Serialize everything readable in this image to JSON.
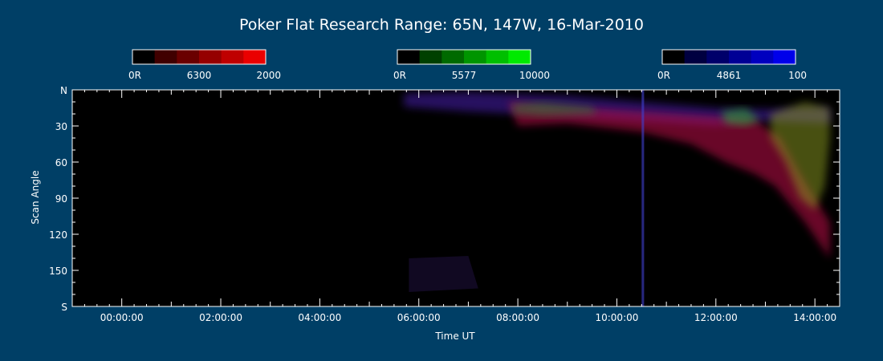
{
  "colors": {
    "background": "#003f66",
    "plot_background": "#000000",
    "axis": "#ffffff",
    "red_channel": "#ff0000",
    "green_channel": "#00ff00",
    "blue_channel": "#0000ff"
  },
  "colorbars": [
    {
      "name": "red-6300",
      "color": "#ff0000",
      "min_label": "0R",
      "line_label": "6300",
      "max_label": "2000"
    },
    {
      "name": "green-5577",
      "color": "#00ff00",
      "min_label": "0R",
      "line_label": "5577",
      "max_label": "10000"
    },
    {
      "name": "blue-4861",
      "color": "#0000ff",
      "min_label": "0R",
      "line_label": "4861",
      "max_label": "100"
    }
  ],
  "chart_data": {
    "type": "heatmap",
    "title": "Poker Flat Research Range: 65N, 147W, 16-Mar-2010",
    "xlabel": "Time UT",
    "ylabel": "Scan Angle",
    "x_unit": "hours UT",
    "xlim": [
      -1.0,
      14.5
    ],
    "ylim": [
      0,
      180
    ],
    "x_ticks": [
      {
        "value": 0,
        "label": "00:00:00"
      },
      {
        "value": 2,
        "label": "02:00:00"
      },
      {
        "value": 4,
        "label": "04:00:00"
      },
      {
        "value": 6,
        "label": "06:00:00"
      },
      {
        "value": 8,
        "label": "08:00:00"
      },
      {
        "value": 10,
        "label": "10:00:00"
      },
      {
        "value": 12,
        "label": "12:00:00"
      },
      {
        "value": 14,
        "label": "14:00:00"
      }
    ],
    "y_ticks": [
      {
        "value": 0,
        "label": "N"
      },
      {
        "value": 30,
        "label": "30"
      },
      {
        "value": 60,
        "label": "60"
      },
      {
        "value": 90,
        "label": "90"
      },
      {
        "value": 120,
        "label": "120"
      },
      {
        "value": 150,
        "label": "150"
      },
      {
        "value": 180,
        "label": "S"
      }
    ],
    "data_start_time": 5.6,
    "data_end_time": 14.5,
    "grid": false,
    "auroral_regions": [
      {
        "channel": "blue",
        "color": "#5020c0",
        "opacity": 0.5,
        "polygon": [
          [
            5.7,
            3
          ],
          [
            7,
            2
          ],
          [
            9,
            5
          ],
          [
            10.5,
            10
          ],
          [
            12,
            15
          ],
          [
            13,
            16
          ],
          [
            14.3,
            15
          ],
          [
            14.3,
            28
          ],
          [
            13,
            26
          ],
          [
            12,
            30
          ],
          [
            10.5,
            26
          ],
          [
            9,
            22
          ],
          [
            7,
            18
          ],
          [
            5.7,
            14
          ]
        ]
      },
      {
        "channel": "red",
        "color": "#c0104a",
        "opacity": 0.55,
        "polygon": [
          [
            7.8,
            10
          ],
          [
            9,
            14
          ],
          [
            10.5,
            18
          ],
          [
            12,
            22
          ],
          [
            12.8,
            25
          ],
          [
            13.3,
            40
          ],
          [
            13.7,
            70
          ],
          [
            14.3,
            110
          ],
          [
            14.3,
            140
          ],
          [
            13.8,
            110
          ],
          [
            13.2,
            80
          ],
          [
            12.8,
            70
          ],
          [
            12.2,
            60
          ],
          [
            11.5,
            45
          ],
          [
            10.5,
            35
          ],
          [
            9,
            28
          ],
          [
            8,
            30
          ]
        ]
      },
      {
        "channel": "green",
        "color": "#209020",
        "opacity": 0.45,
        "polygon": [
          [
            7.9,
            12
          ],
          [
            8.5,
            10
          ],
          [
            9.5,
            14
          ],
          [
            9.6,
            20
          ],
          [
            8.5,
            22
          ],
          [
            7.9,
            20
          ]
        ]
      },
      {
        "channel": "green",
        "color": "#30b030",
        "opacity": 0.55,
        "polygon": [
          [
            12.1,
            18
          ],
          [
            12.6,
            15
          ],
          [
            12.9,
            25
          ],
          [
            12.6,
            30
          ],
          [
            12.2,
            28
          ]
        ]
      },
      {
        "channel": "green",
        "color": "#90a020",
        "opacity": 0.5,
        "polygon": [
          [
            13.1,
            20
          ],
          [
            13.8,
            10
          ],
          [
            14.3,
            15
          ],
          [
            14.3,
            40
          ],
          [
            14.2,
            80
          ],
          [
            14.0,
            100
          ],
          [
            13.7,
            90
          ],
          [
            13.4,
            60
          ],
          [
            13.1,
            40
          ]
        ]
      },
      {
        "channel": "blue",
        "color": "#4040d0",
        "opacity": 0.6,
        "polygon": [
          [
            10.5,
            0
          ],
          [
            10.55,
            0
          ],
          [
            10.55,
            180
          ],
          [
            10.5,
            180
          ]
        ]
      },
      {
        "channel": "blue",
        "color": "#301a60",
        "opacity": 0.35,
        "polygon": [
          [
            5.8,
            140
          ],
          [
            7,
            138
          ],
          [
            7.2,
            165
          ],
          [
            5.8,
            168
          ]
        ]
      }
    ]
  }
}
